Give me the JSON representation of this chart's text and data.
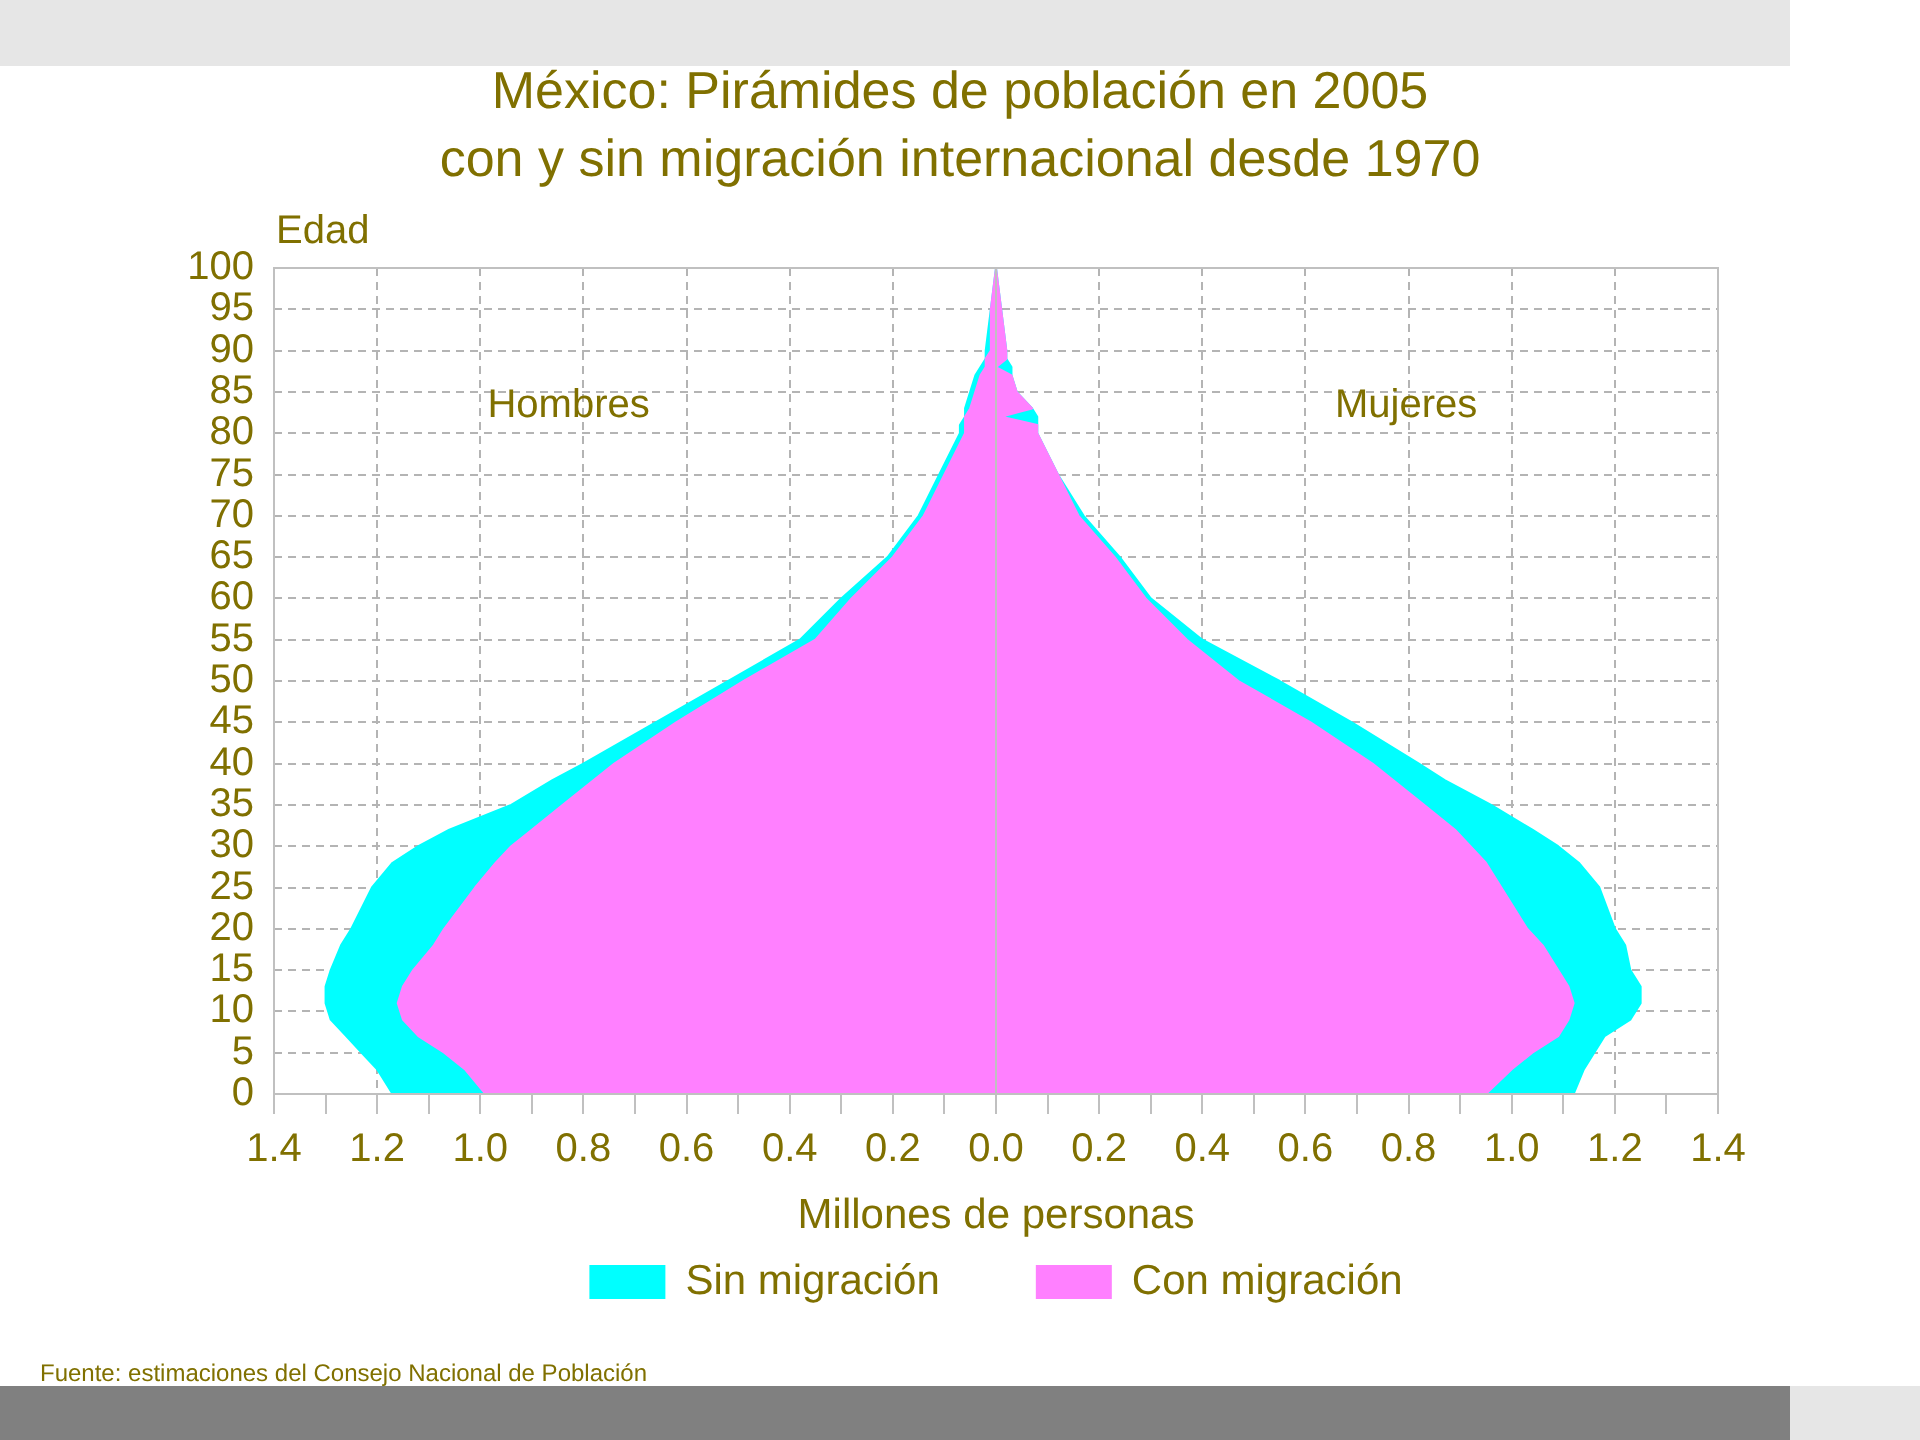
{
  "chart_data": {
    "type": "area",
    "orientation": "horizontal",
    "title": "México: Pirámides de población en 2005\ncon y sin migración internacional desde 1970",
    "xlabel": "Millones de personas",
    "ylabel": "Edad",
    "x": [
      0,
      3,
      5,
      7,
      9,
      11,
      13,
      15,
      18,
      20,
      25,
      28,
      30,
      32,
      35,
      38,
      40,
      45,
      50,
      55,
      60,
      65,
      70,
      75,
      80,
      81,
      82,
      83,
      85,
      87,
      88,
      89,
      90,
      95,
      100
    ],
    "series": [
      {
        "name": "Sin migración",
        "color": "#00ffff",
        "values": [
          -1.17,
          -1.2,
          -1.23,
          -1.26,
          -1.29,
          -1.3,
          -1.3,
          -1.29,
          -1.27,
          -1.25,
          -1.21,
          -1.17,
          -1.12,
          -1.06,
          -0.94,
          -0.86,
          -0.8,
          -0.66,
          -0.52,
          -0.38,
          -0.3,
          -0.21,
          -0.15,
          -0.11,
          -0.07,
          -0.07,
          -0.06,
          -0.06,
          -0.05,
          -0.04,
          -0.03,
          -0.02,
          -0.02,
          -0.01,
          0
        ]
      },
      {
        "name": "Con migración",
        "color": "#ff80ff",
        "values": [
          -0.99,
          -1.03,
          -1.07,
          -1.12,
          -1.15,
          -1.16,
          -1.15,
          -1.13,
          -1.09,
          -1.07,
          -1.01,
          -0.97,
          -0.94,
          -0.9,
          -0.84,
          -0.78,
          -0.74,
          -0.62,
          -0.49,
          -0.35,
          -0.28,
          -0.2,
          -0.14,
          -0.1,
          -0.06,
          -0.06,
          -0.06,
          -0.05,
          -0.04,
          -0.03,
          -0.02,
          -0.02,
          -0.01,
          -0.01,
          0
        ]
      },
      {
        "color": "#00ffff",
        "values": [
          1.12,
          1.14,
          1.16,
          1.18,
          1.23,
          1.25,
          1.25,
          1.23,
          1.22,
          1.2,
          1.17,
          1.13,
          1.09,
          1.04,
          0.96,
          0.87,
          0.82,
          0.69,
          0.55,
          0.4,
          0.3,
          0.24,
          0.17,
          0.12,
          0.08,
          0.08,
          0.08,
          0.07,
          0.04,
          0.03,
          0.03,
          0.02,
          0.02,
          0.01,
          0
        ]
      },
      {
        "color": "#ff80ff",
        "values": [
          0.95,
          1.0,
          1.04,
          1.09,
          1.11,
          1.12,
          1.11,
          1.09,
          1.06,
          1.03,
          0.98,
          0.95,
          0.92,
          0.89,
          0.83,
          0.77,
          0.73,
          0.61,
          0.47,
          0.37,
          0.29,
          0.23,
          0.16,
          0.12,
          0.08,
          0.08,
          0.01,
          0.07,
          0.04,
          0.03,
          0,
          0.02,
          0.02,
          0.01,
          0
        ]
      }
    ],
    "xlim": [
      -1.4,
      1.4
    ],
    "xticks": [
      {
        "value": -1.4,
        "label": "1.4"
      },
      {
        "value": -1.3,
        "label": null
      },
      {
        "value": -1.2,
        "label": "1.2"
      },
      {
        "value": -1.1,
        "label": null
      },
      {
        "value": -1.0,
        "label": "1.0"
      },
      {
        "value": -0.9,
        "label": null
      },
      {
        "value": -0.8,
        "label": "0.8"
      },
      {
        "value": -0.7,
        "label": null
      },
      {
        "value": -0.6,
        "label": "0.6"
      },
      {
        "value": -0.5,
        "label": null
      },
      {
        "value": -0.4,
        "label": "0.4"
      },
      {
        "value": -0.3,
        "label": null
      },
      {
        "value": -0.2,
        "label": "0.2"
      },
      {
        "value": -0.1,
        "label": null
      },
      {
        "value": 0,
        "label": "0.0"
      },
      {
        "value": 0.1,
        "label": null
      },
      {
        "value": 0.2,
        "label": "0.2"
      },
      {
        "value": 0.3,
        "label": null
      },
      {
        "value": 0.4,
        "label": "0.4"
      },
      {
        "value": 0.5,
        "label": null
      },
      {
        "value": 0.6,
        "label": "0.6"
      },
      {
        "value": 0.7,
        "label": null
      },
      {
        "value": 0.8,
        "label": "0.8"
      },
      {
        "value": 0.9,
        "label": null
      },
      {
        "value": 1.0,
        "label": "1.0"
      },
      {
        "value": 1.1,
        "label": null
      },
      {
        "value": 1.2,
        "label": "1.2"
      },
      {
        "value": 1.3,
        "label": null
      },
      {
        "value": 1.4,
        "label": "1.4"
      }
    ],
    "ylim": [
      0,
      100
    ],
    "yticks": [
      0,
      5,
      10,
      15,
      20,
      25,
      30,
      35,
      40,
      45,
      50,
      55,
      60,
      65,
      70,
      75,
      80,
      85,
      90,
      95,
      100
    ],
    "grid": true,
    "legend": "bottom",
    "ref_lines": [
      {
        "axis": "x",
        "value": 0,
        "color": "#c0c0c0"
      }
    ],
    "annotations": [
      "Hombres",
      "Mujeres",
      "Fuente: estimaciones del Consejo Nacional de Población"
    ]
  }
}
